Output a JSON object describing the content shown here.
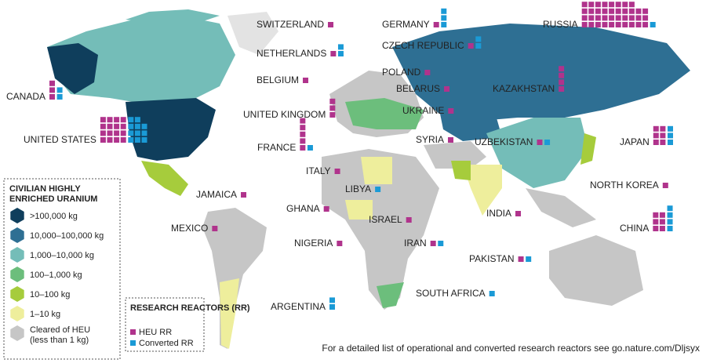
{
  "legend": {
    "title": "CIVILIAN HIGHLY ENRICHED URANIUM",
    "items": [
      {
        "label": ">100,000 kg",
        "color": "#0f3e5c"
      },
      {
        "label": "10,000–100,000 kg",
        "color": "#2e6f93"
      },
      {
        "label": "1,000–10,000 kg",
        "color": "#74bdb8"
      },
      {
        "label": "100–1,000 kg",
        "color": "#6cbe7c"
      },
      {
        "label": "10–100 kg",
        "color": "#a6cc3c"
      },
      {
        "label": "1–10 kg",
        "color": "#eeee9c"
      },
      {
        "label": "Cleared of HEU (less than 1 kg)",
        "color": "#c6c6c6"
      }
    ]
  },
  "reactor_legend": {
    "title": "RESEARCH REACTORS (RR)",
    "heu": {
      "label": "HEU RR",
      "color": "#b0338c"
    },
    "converted": {
      "label": "Converted RR",
      "color": "#1a9ad6"
    }
  },
  "countries": [
    {
      "name": "SWITZERLAND",
      "heu": 1,
      "converted": 0
    },
    {
      "name": "GERMANY",
      "heu": 1,
      "converted": 3
    },
    {
      "name": "RUSSIA",
      "heu": 38,
      "converted": 1
    },
    {
      "name": "NETHERLANDS",
      "heu": 1,
      "converted": 2
    },
    {
      "name": "CZECH REPUBLIC",
      "heu": 1,
      "converted": 2
    },
    {
      "name": "BELGIUM",
      "heu": 1,
      "converted": 0
    },
    {
      "name": "POLAND",
      "heu": 1,
      "converted": 0
    },
    {
      "name": "BELARUS",
      "heu": 1,
      "converted": 0
    },
    {
      "name": "KAZAKHSTAN",
      "heu": 4,
      "converted": 0
    },
    {
      "name": "CANADA",
      "heu": 3,
      "converted": 2
    },
    {
      "name": "UNITED KINGDOM",
      "heu": 3,
      "converted": 0
    },
    {
      "name": "UNITED STATES",
      "heu": 16,
      "converted": 11
    },
    {
      "name": "UKRAINE",
      "heu": 1,
      "converted": 0
    },
    {
      "name": "FRANCE",
      "heu": 5,
      "converted": 1
    },
    {
      "name": "SYRIA",
      "heu": 1,
      "converted": 0
    },
    {
      "name": "UZBEKISTAN",
      "heu": 1,
      "converted": 1
    },
    {
      "name": "JAPAN",
      "heu": 6,
      "converted": 3
    },
    {
      "name": "ITALY",
      "heu": 1,
      "converted": 0
    },
    {
      "name": "LIBYA",
      "heu": 0,
      "converted": 1
    },
    {
      "name": "NORTH KOREA",
      "heu": 1,
      "converted": 0
    },
    {
      "name": "JAMAICA",
      "heu": 1,
      "converted": 0
    },
    {
      "name": "GHANA",
      "heu": 1,
      "converted": 0
    },
    {
      "name": "ISRAEL",
      "heu": 1,
      "converted": 0
    },
    {
      "name": "INDIA",
      "heu": 1,
      "converted": 0
    },
    {
      "name": "MEXICO",
      "heu": 1,
      "converted": 0
    },
    {
      "name": "CHINA",
      "heu": 6,
      "converted": 4
    },
    {
      "name": "NIGERIA",
      "heu": 1,
      "converted": 0
    },
    {
      "name": "IRAN",
      "heu": 1,
      "converted": 1
    },
    {
      "name": "PAKISTAN",
      "heu": 1,
      "converted": 1
    },
    {
      "name": "SOUTH AFRICA",
      "heu": 0,
      "converted": 1
    },
    {
      "name": "ARGENTINA",
      "heu": 0,
      "converted": 2
    }
  ],
  "footer": "For a detailed list of operational and converted research reactors see go.nature.com/Dljsyx"
}
